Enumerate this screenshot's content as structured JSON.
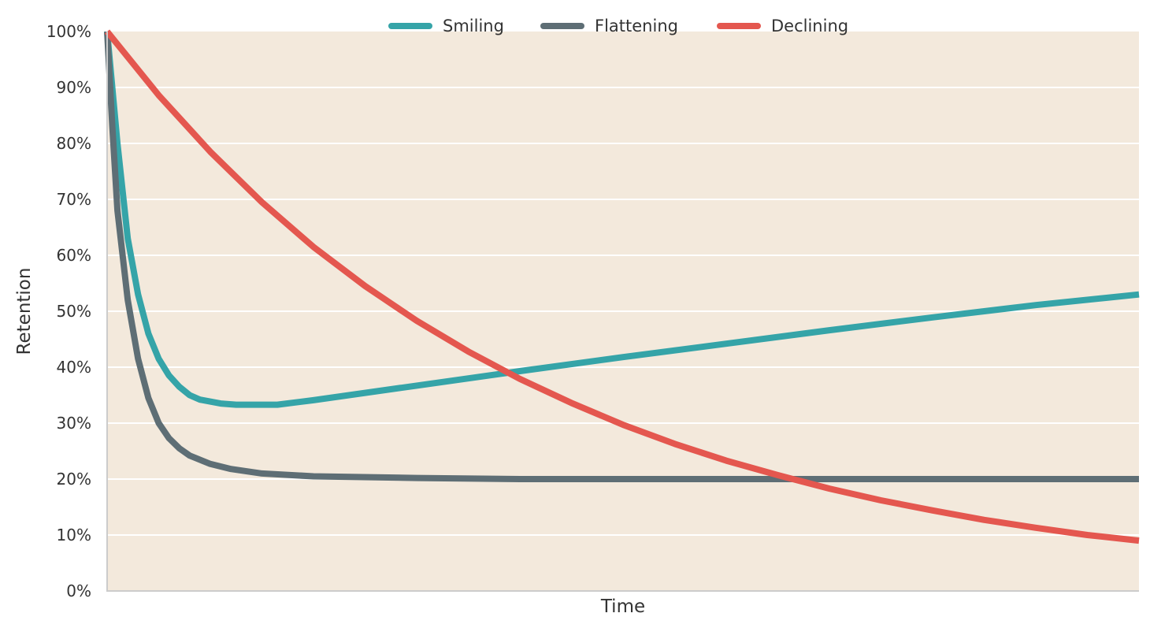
{
  "chart_data": {
    "type": "line",
    "title": "",
    "xlabel": "Time",
    "ylabel": "Retention",
    "x_tick_labels": [],
    "y_tick_labels": [
      "0%",
      "10%",
      "20%",
      "30%",
      "40%",
      "50%",
      "60%",
      "70%",
      "80%",
      "90%",
      "100%"
    ],
    "ylim": [
      0,
      100
    ],
    "xlim": [
      0,
      1
    ],
    "grid": "horizontal",
    "legend_position": "top-center",
    "background_color": "#f3e9dc",
    "series": [
      {
        "name": "Smiling",
        "color": "#35a4a8",
        "points": [
          [
            0,
            100
          ],
          [
            0.01,
            80
          ],
          [
            0.02,
            63
          ],
          [
            0.03,
            53
          ],
          [
            0.04,
            46
          ],
          [
            0.05,
            41.5
          ],
          [
            0.06,
            38.5
          ],
          [
            0.07,
            36.5
          ],
          [
            0.08,
            35
          ],
          [
            0.09,
            34.2
          ],
          [
            0.11,
            33.5
          ],
          [
            0.125,
            33.3
          ],
          [
            0.165,
            33.3
          ],
          [
            0.2,
            34.1
          ],
          [
            0.3,
            36.7
          ],
          [
            0.4,
            39.3
          ],
          [
            0.5,
            41.8
          ],
          [
            0.6,
            44.2
          ],
          [
            0.7,
            46.6
          ],
          [
            0.8,
            48.9
          ],
          [
            0.9,
            51.1
          ],
          [
            1.0,
            53
          ]
        ]
      },
      {
        "name": "Flattening",
        "color": "#5e6e75",
        "points": [
          [
            0,
            100
          ],
          [
            0.005,
            83
          ],
          [
            0.01,
            68
          ],
          [
            0.02,
            52
          ],
          [
            0.03,
            41.5
          ],
          [
            0.04,
            34.5
          ],
          [
            0.05,
            30
          ],
          [
            0.06,
            27.3
          ],
          [
            0.07,
            25.5
          ],
          [
            0.08,
            24.2
          ],
          [
            0.1,
            22.7
          ],
          [
            0.12,
            21.8
          ],
          [
            0.15,
            21
          ],
          [
            0.2,
            20.5
          ],
          [
            0.3,
            20.2
          ],
          [
            0.4,
            20
          ],
          [
            0.6,
            20
          ],
          [
            0.8,
            20
          ],
          [
            1.0,
            20
          ]
        ]
      },
      {
        "name": "Declining",
        "color": "#e4574f",
        "points": [
          [
            0,
            100
          ],
          [
            0.05,
            88.6
          ],
          [
            0.1,
            78.5
          ],
          [
            0.15,
            69.5
          ],
          [
            0.2,
            61.5
          ],
          [
            0.25,
            54.5
          ],
          [
            0.3,
            48.3
          ],
          [
            0.35,
            42.8
          ],
          [
            0.4,
            37.9
          ],
          [
            0.45,
            33.6
          ],
          [
            0.5,
            29.7
          ],
          [
            0.55,
            26.3
          ],
          [
            0.6,
            23.3
          ],
          [
            0.65,
            20.7
          ],
          [
            0.7,
            18.3
          ],
          [
            0.75,
            16.2
          ],
          [
            0.8,
            14.4
          ],
          [
            0.85,
            12.7
          ],
          [
            0.9,
            11.3
          ],
          [
            0.95,
            10
          ],
          [
            1.0,
            9
          ]
        ]
      }
    ]
  }
}
